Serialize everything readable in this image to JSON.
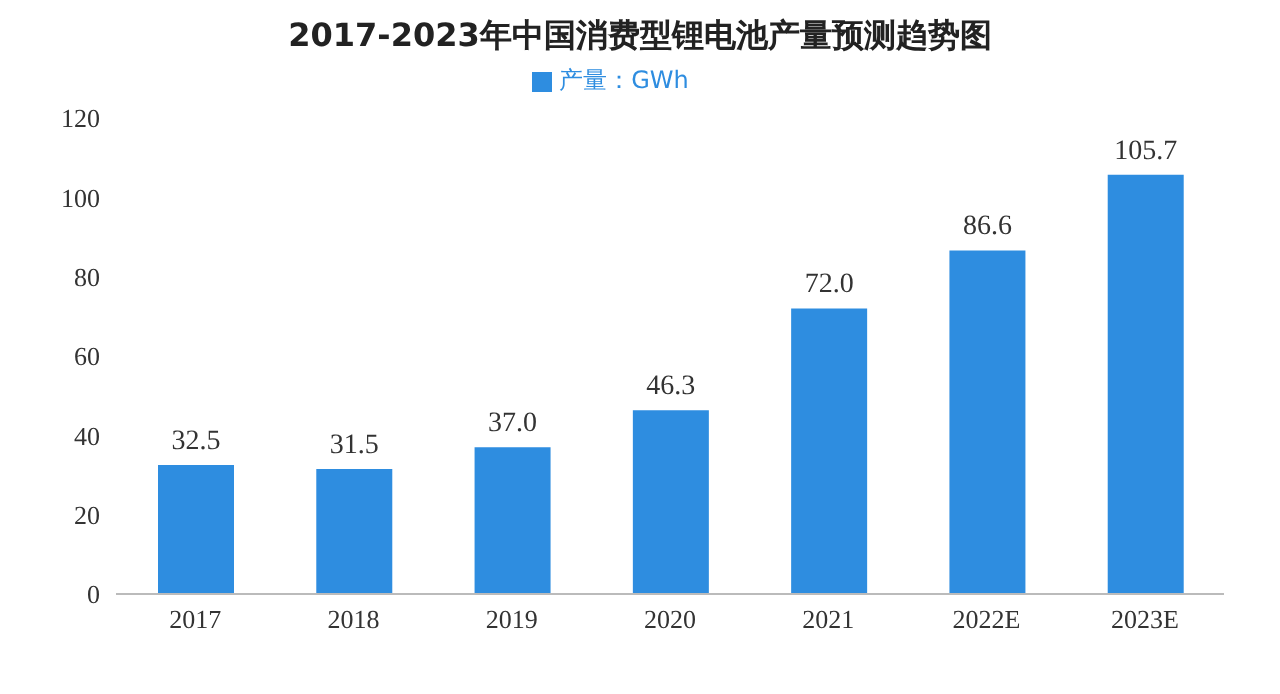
{
  "chart_data": {
    "type": "bar",
    "title": "2017-2023年中国消费型锂电池产量预测趋势图",
    "categories": [
      "2017",
      "2018",
      "2019",
      "2020",
      "2021",
      "2022E",
      "2023E"
    ],
    "series": [
      {
        "name": "产量：GWh",
        "color": "#2e8de0",
        "values": [
          32.5,
          31.5,
          37.0,
          46.3,
          72.0,
          86.6,
          105.7
        ]
      }
    ],
    "value_labels": [
      "32.5",
      "31.5",
      "37.0",
      "46.3",
      "72.0",
      "86.6",
      "105.7"
    ],
    "ylim": [
      0,
      120
    ],
    "yticks": [
      0,
      20,
      40,
      60,
      80,
      100,
      120
    ],
    "grid": false,
    "legend": "top"
  }
}
